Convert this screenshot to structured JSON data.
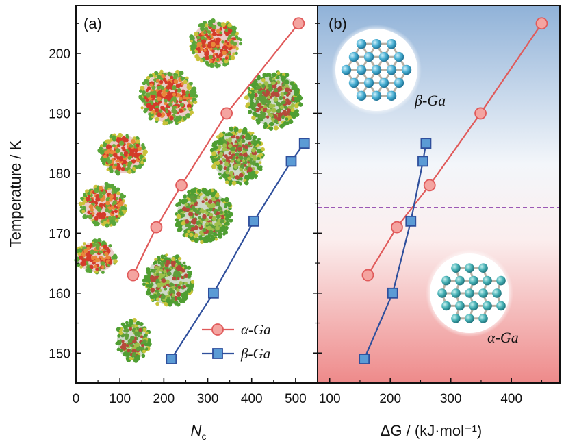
{
  "chart_data": [
    {
      "type": "line",
      "panel": "(a)",
      "xlabel": "N",
      "xlabel_sub": "c",
      "ylabel": "Temperature / K",
      "xlim": [
        0,
        550
      ],
      "ylim": [
        145,
        208
      ],
      "xticks": [
        "0",
        "100",
        "200",
        "300",
        "400",
        "500"
      ],
      "yticks": [
        "150",
        "160",
        "170",
        "180",
        "190",
        "200"
      ],
      "legend_position": "bottom-right",
      "series": [
        {
          "name": "α-Ga",
          "color": "#e05a5a",
          "marker_fill": "#f4a4a0",
          "marker": "circle",
          "x": [
            130,
            183,
            240,
            343,
            507
          ],
          "y": [
            163,
            171,
            178,
            190,
            205
          ]
        },
        {
          "name": "β-Ga",
          "color": "#2f4f9c",
          "marker_fill": "#5b9bd5",
          "marker": "square",
          "x": [
            217,
            313,
            405,
            490,
            520
          ],
          "y": [
            149,
            160,
            172,
            182,
            185
          ]
        }
      ]
    },
    {
      "type": "line",
      "panel": "(b)",
      "xlabel": "ΔG / (kJ·mol⁻¹)",
      "xlim": [
        80,
        480
      ],
      "ylim": [
        145,
        208
      ],
      "xticks": [
        "100",
        "200",
        "300",
        "400"
      ],
      "threshold_temperature": 174.3,
      "labels": [
        "β-Ga",
        "α-Ga"
      ],
      "series": [
        {
          "name": "α-Ga",
          "color": "#e05a5a",
          "marker_fill": "#f4a4a0",
          "marker": "circle",
          "x": [
            163,
            211,
            265,
            349,
            450
          ],
          "y": [
            163,
            171,
            178,
            190,
            205
          ]
        },
        {
          "name": "β-Ga",
          "color": "#2f4f9c",
          "marker_fill": "#5b9bd5",
          "marker": "square",
          "x": [
            157,
            204,
            234,
            254,
            259
          ],
          "y": [
            149,
            160,
            172,
            182,
            185
          ]
        }
      ]
    }
  ],
  "colors": {
    "panel_b_top": "#8fb1d6",
    "panel_b_bottom": "#ee8d8d",
    "threshold_line": "#9b59b6"
  }
}
